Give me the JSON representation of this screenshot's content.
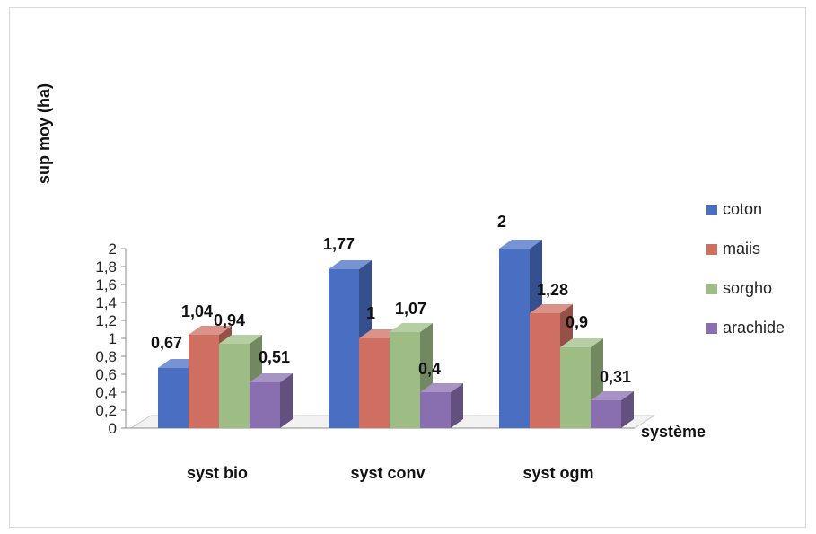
{
  "chart_data": {
    "type": "bar",
    "title": "",
    "xlabel": "système",
    "ylabel": "sup moy (ha)",
    "categories": [
      "syst bio",
      "syst conv",
      "syst ogm"
    ],
    "ylim": [
      0,
      2
    ],
    "ytick_labels": [
      "0",
      "0,2",
      "0,4",
      "0,6",
      "0,8",
      "1",
      "1,2",
      "1,4",
      "1,6",
      "1,8",
      "2"
    ],
    "series": [
      {
        "name": "coton",
        "color": "#4a6fc2",
        "values": [
          0.67,
          1.77,
          2
        ],
        "labels": [
          "0,67",
          "1,77",
          "2"
        ]
      },
      {
        "name": "maiis",
        "color": "#cf6f62",
        "values": [
          1.04,
          1.0,
          1.28
        ],
        "labels": [
          "1,04",
          "1",
          "1,28"
        ]
      },
      {
        "name": "sorgho",
        "color": "#9dbd85",
        "values": [
          0.94,
          1.07,
          0.9
        ],
        "labels": [
          "0,94",
          "1,07",
          "0,9"
        ]
      },
      {
        "name": "arachide",
        "color": "#8a6fb0",
        "values": [
          0.51,
          0.4,
          0.31
        ],
        "labels": [
          "0,51",
          "0,4",
          "0,31"
        ]
      }
    ],
    "legend_position": "right",
    "grid": false,
    "style": "3d-clustered-column"
  }
}
